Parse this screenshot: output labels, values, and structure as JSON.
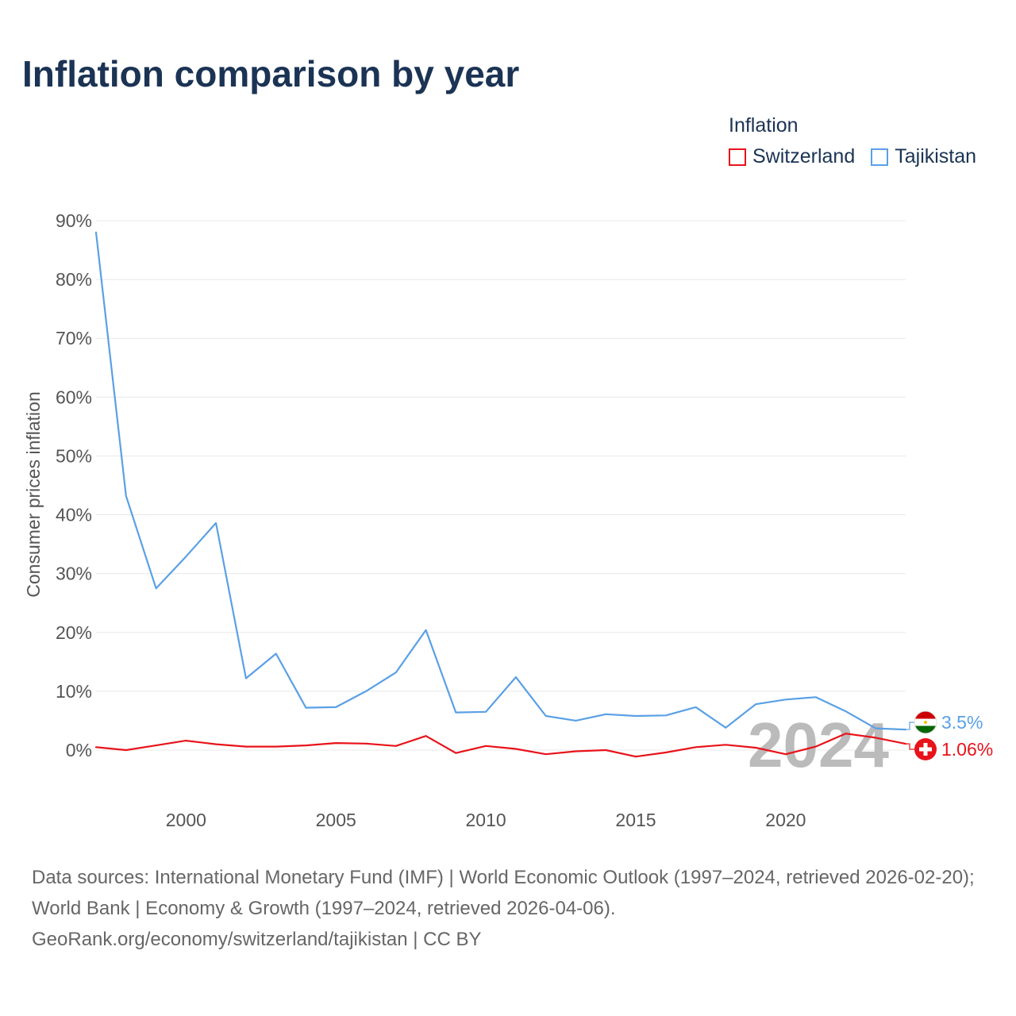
{
  "title": "Inflation comparison by year",
  "legend": {
    "title": "Inflation",
    "items": [
      {
        "label": "Switzerland",
        "color": "#e8131a"
      },
      {
        "label": "Tajikistan",
        "color": "#5aa0e6"
      }
    ]
  },
  "footer": {
    "line1": "Data sources: International Monetary Fund (IMF) | World Economic Outlook (1997–2024, retrieved 2026-02-20); World Bank | Economy & Growth (1997–2024, retrieved 2026-04-06).",
    "line2": "GeoRank.org/economy/switzerland/tajikistan | CC BY"
  },
  "chart_data": {
    "type": "line",
    "ylabel": "Consumer prices inflation",
    "xlabel": "",
    "ylim": [
      -8,
      90
    ],
    "xlim": [
      1997,
      2024
    ],
    "yticks": [
      0,
      10,
      20,
      30,
      40,
      50,
      60,
      70,
      80,
      90
    ],
    "ytick_labels": [
      "0%",
      "10%",
      "20%",
      "30%",
      "40%",
      "50%",
      "60%",
      "70%",
      "80%",
      "90%"
    ],
    "xticks": [
      2000,
      2005,
      2010,
      2015,
      2020
    ],
    "xtick_labels": [
      "2000",
      "2005",
      "2010",
      "2015",
      "2020"
    ],
    "watermark": "2024",
    "x": [
      1997,
      1998,
      1999,
      2000,
      2001,
      2002,
      2003,
      2004,
      2005,
      2006,
      2007,
      2008,
      2009,
      2010,
      2011,
      2012,
      2013,
      2014,
      2015,
      2016,
      2017,
      2018,
      2019,
      2020,
      2021,
      2022,
      2023,
      2024
    ],
    "series": [
      {
        "name": "Switzerland",
        "color": "#e8131a",
        "values": [
          0.5,
          0.0,
          0.8,
          1.6,
          1.0,
          0.6,
          0.6,
          0.8,
          1.2,
          1.1,
          0.7,
          2.4,
          -0.5,
          0.7,
          0.2,
          -0.7,
          -0.2,
          0.0,
          -1.1,
          -0.4,
          0.5,
          0.9,
          0.4,
          -0.7,
          0.6,
          2.8,
          2.1,
          1.06
        ],
        "end_label": "1.06%"
      },
      {
        "name": "Tajikistan",
        "color": "#5aa0e6",
        "values": [
          88.0,
          43.2,
          27.5,
          32.9,
          38.6,
          12.2,
          16.4,
          7.2,
          7.3,
          10.0,
          13.2,
          20.4,
          6.4,
          6.5,
          12.4,
          5.8,
          5.0,
          6.1,
          5.8,
          5.9,
          7.3,
          3.8,
          7.8,
          8.6,
          9.0,
          6.6,
          3.7,
          3.5
        ],
        "end_label": "3.5%"
      }
    ]
  }
}
